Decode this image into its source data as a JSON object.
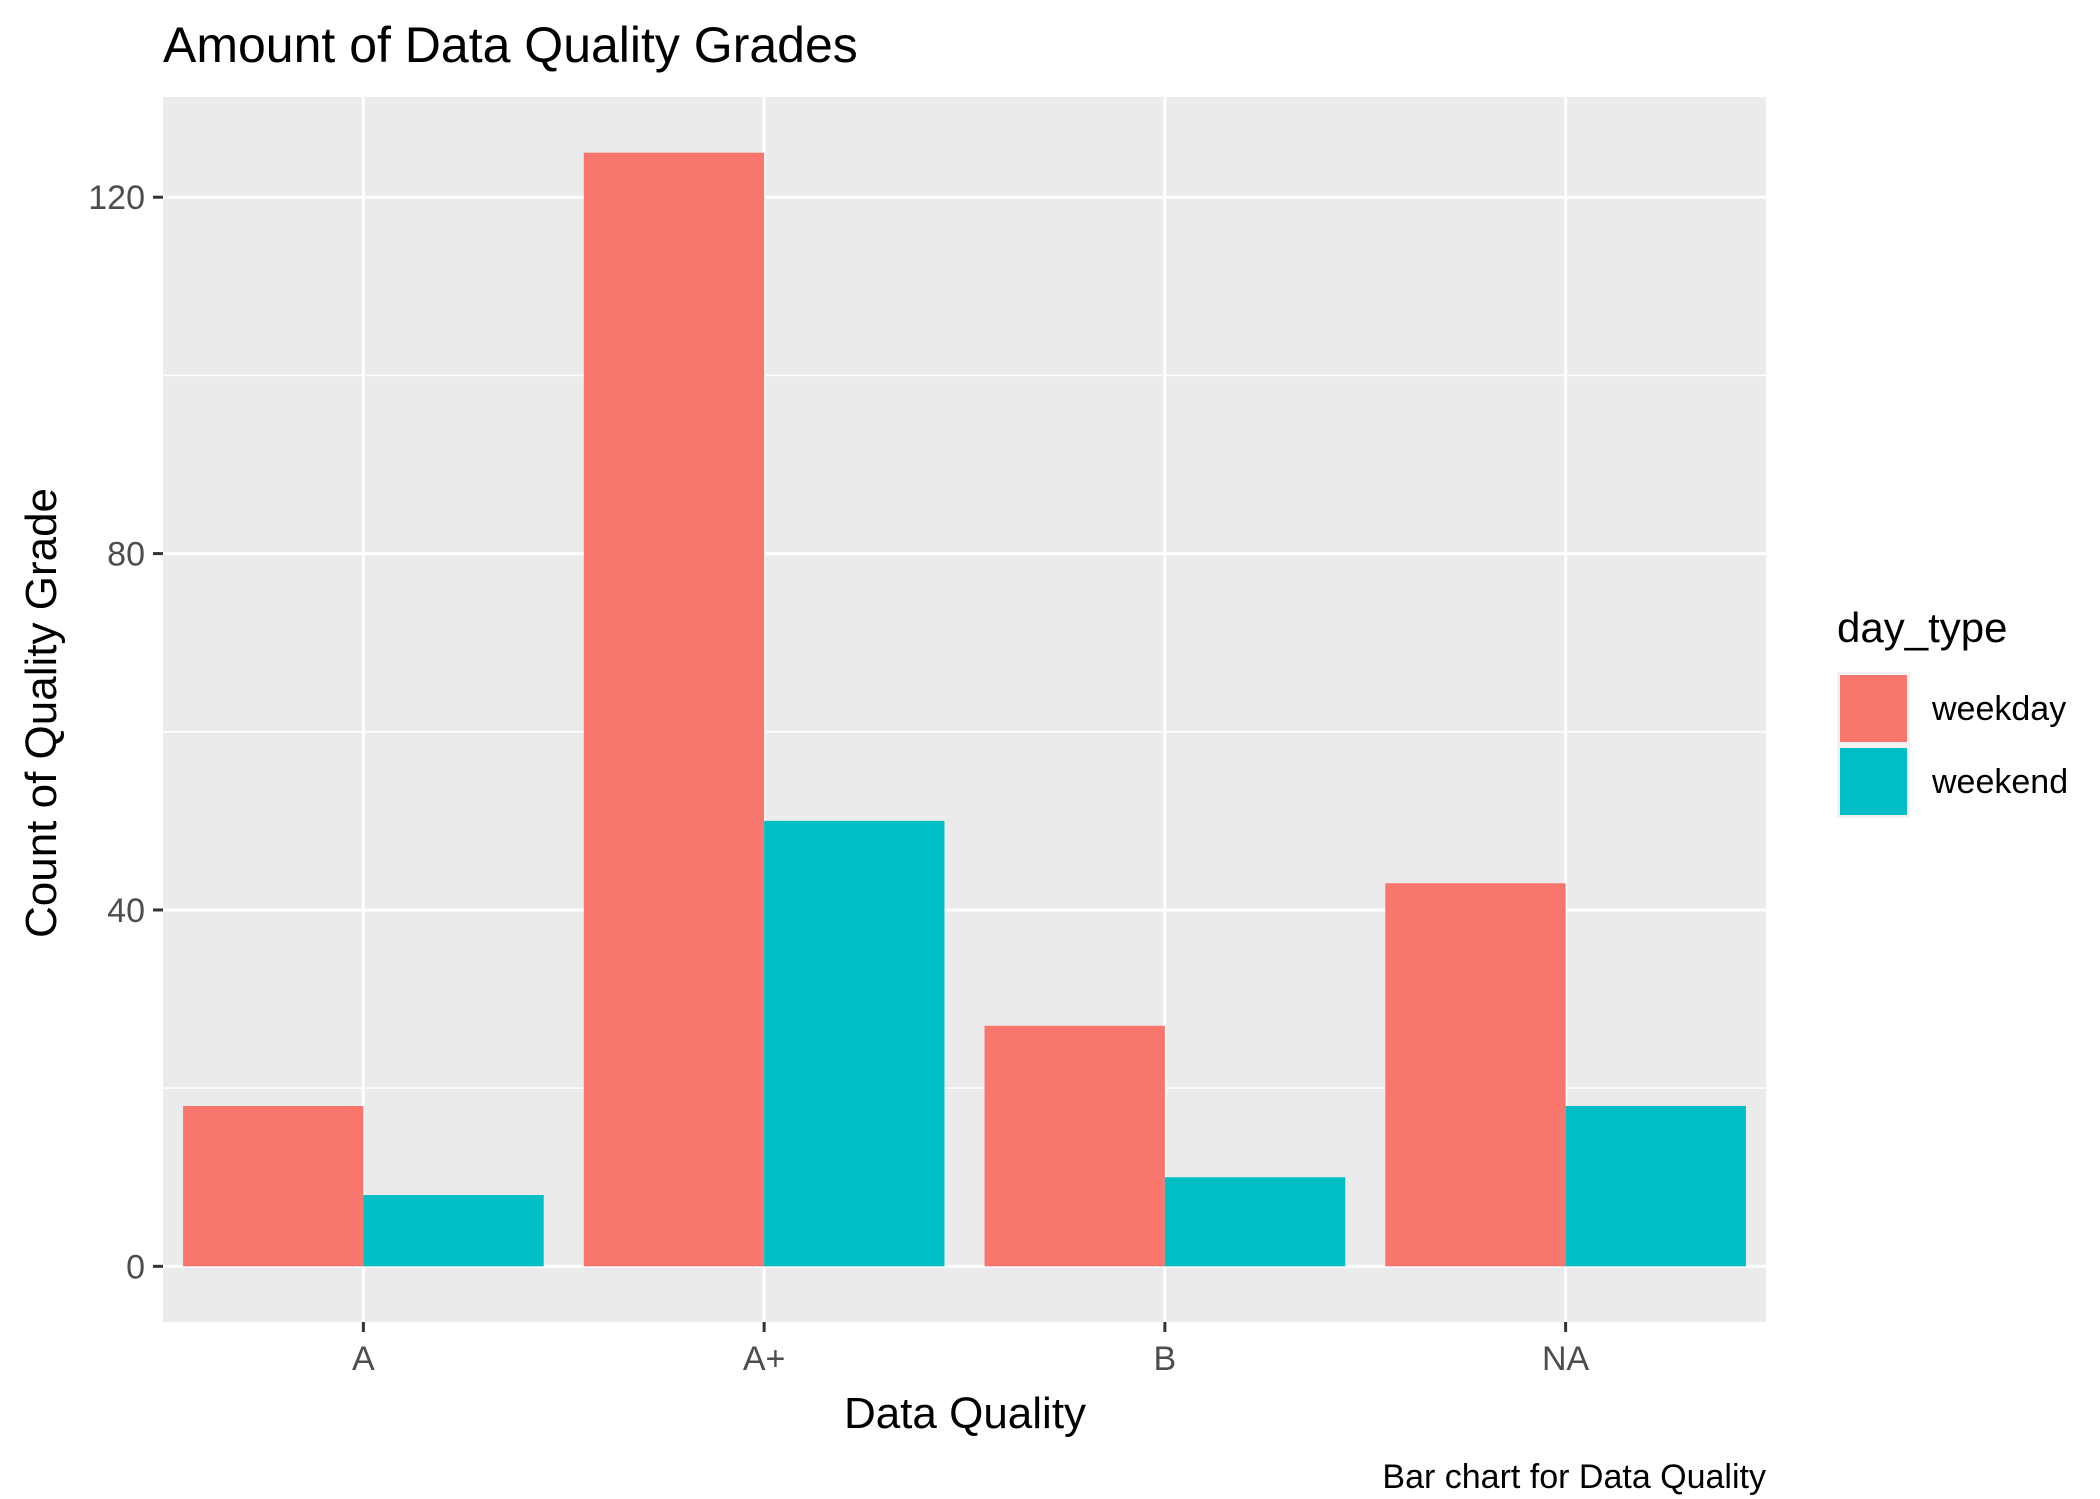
{
  "chart_data": {
    "type": "bar",
    "title": "Amount of Data Quality Grades",
    "xlabel": "Data Quality",
    "ylabel": "Count of Quality Grade",
    "caption": "Bar chart for Data Quality",
    "categories": [
      "A",
      "A+",
      "B",
      "NA"
    ],
    "series": [
      {
        "name": "weekday",
        "color": "#F8766D",
        "values": [
          18,
          125,
          27,
          43
        ]
      },
      {
        "name": "weekend",
        "color": "#00BFC4",
        "values": [
          8,
          50,
          10,
          18
        ]
      }
    ],
    "ylim": [
      -6.25,
      131.25
    ],
    "yticks": [
      0,
      40,
      80,
      120
    ],
    "yminor": [
      20,
      60,
      100
    ],
    "legend": {
      "title": "day_type",
      "position": "right"
    },
    "grid": true,
    "panel_background": "#EBEBEB",
    "grid_color": "#FFFFFF"
  }
}
